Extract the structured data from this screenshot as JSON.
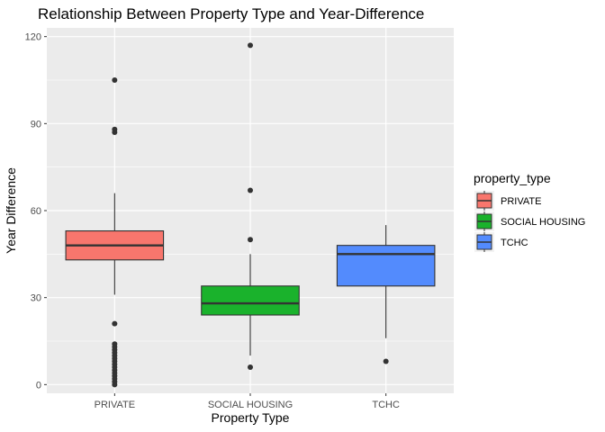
{
  "chart_data": {
    "type": "boxplot",
    "title": "Relationship Between Property Type and Year-Difference",
    "xlabel": "Property Type",
    "ylabel": "Year Difference",
    "ylim": [
      -3,
      123
    ],
    "y_ticks": [
      0,
      30,
      60,
      90,
      120
    ],
    "grid": true,
    "legend": {
      "title": "property_type",
      "placement": "right",
      "entries": [
        {
          "label": "PRIVATE",
          "color": "#F8766D"
        },
        {
          "label": "SOCIAL HOUSING",
          "color": "#1AB22C"
        },
        {
          "label": "TCHC",
          "color": "#538BFD"
        }
      ]
    },
    "categories": [
      "PRIVATE",
      "SOCIAL HOUSING",
      "TCHC"
    ],
    "boxes": [
      {
        "category": "PRIVATE",
        "color": "#F8766D",
        "whisker_low": 31,
        "q1": 43,
        "median": 48,
        "q3": 53,
        "whisker_high": 66,
        "outliers": [
          105,
          88,
          87,
          21,
          14,
          13,
          12,
          11,
          10,
          9,
          8,
          7,
          6,
          5,
          4,
          3,
          2,
          1,
          0
        ]
      },
      {
        "category": "SOCIAL HOUSING",
        "color": "#1AB22C",
        "whisker_low": 10,
        "q1": 24,
        "median": 28,
        "q3": 34,
        "whisker_high": 45,
        "outliers": [
          117,
          67,
          50,
          6
        ]
      },
      {
        "category": "TCHC",
        "color": "#538BFD",
        "whisker_low": 16,
        "q1": 34,
        "median": 45,
        "q3": 48,
        "whisker_high": 55,
        "outliers": [
          8
        ]
      }
    ]
  }
}
